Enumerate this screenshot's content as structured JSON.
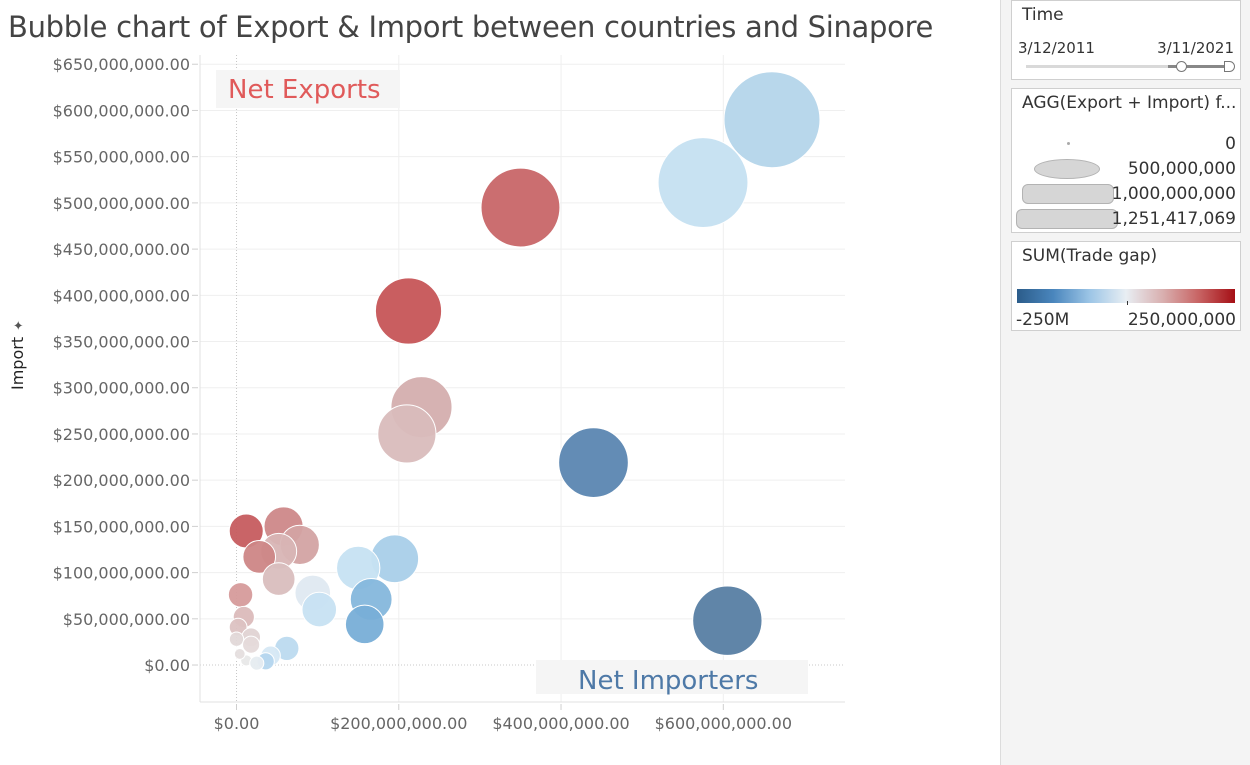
{
  "title": "Bubble chart of Export & Import between  countries and Sinapore",
  "ylabel": "Import",
  "ylabel_pin_icon": "pin-icon",
  "annotations": {
    "net_exports": "Net Exports",
    "net_importers": "Net Importers"
  },
  "chart_data": {
    "type": "scatter",
    "title": "Bubble chart of Export & Import between  countries and Sinapore",
    "xlabel": "",
    "ylabel": "Import",
    "xlim": [
      -45000000,
      750000000
    ],
    "ylim": [
      -40000000,
      660000000
    ],
    "x_ticks": [
      0,
      200000000,
      400000000,
      600000000
    ],
    "x_tick_labels": [
      "$0.00",
      "$200,000,000.00",
      "$400,000,000.00",
      "$600,000,000.00"
    ],
    "y_ticks": [
      0,
      50000000,
      100000000,
      150000000,
      200000000,
      250000000,
      300000000,
      350000000,
      400000000,
      450000000,
      500000000,
      550000000,
      600000000,
      650000000
    ],
    "y_tick_labels": [
      "$0.00",
      "$50,000,000.00",
      "$100,000,000.00",
      "$150,000,000.00",
      "$200,000,000.00",
      "$250,000,000.00",
      "$300,000,000.00",
      "$350,000,000.00",
      "$400,000,000.00",
      "$450,000,000.00",
      "$500,000,000.00",
      "$550,000,000.00",
      "$600,000,000.00",
      "$650,000,000.00"
    ],
    "grid": true,
    "size_by": "AGG(Export + Import)",
    "color_by": "SUM(Trade gap)",
    "points": [
      {
        "x": 660000000,
        "y": 590000000,
        "color": "#b4d5ea"
      },
      {
        "x": 575000000,
        "y": 522000000,
        "color": "#c5e0f1"
      },
      {
        "x": 350000000,
        "y": 495000000,
        "color": "#c86668"
      },
      {
        "x": 212000000,
        "y": 383000000,
        "color": "#c65557"
      },
      {
        "x": 228000000,
        "y": 279000000,
        "color": "#d4aeae"
      },
      {
        "x": 210000000,
        "y": 250000000,
        "color": "#d9bcbc"
      },
      {
        "x": 440000000,
        "y": 219000000,
        "color": "#5b86b1"
      },
      {
        "x": 605000000,
        "y": 48000000,
        "color": "#577ea3"
      },
      {
        "x": 12000000,
        "y": 145000000,
        "color": "#c65c5f"
      },
      {
        "x": 58000000,
        "y": 150000000,
        "color": "#cd8889"
      },
      {
        "x": 78000000,
        "y": 130000000,
        "color": "#d3a3a3"
      },
      {
        "x": 52000000,
        "y": 123000000,
        "color": "#d8b5b5"
      },
      {
        "x": 28000000,
        "y": 117000000,
        "color": "#cd8686"
      },
      {
        "x": 52000000,
        "y": 93000000,
        "color": "#d9bebe"
      },
      {
        "x": 195000000,
        "y": 115000000,
        "color": "#a9cfe9"
      },
      {
        "x": 150000000,
        "y": 105000000,
        "color": "#c6e1f2"
      },
      {
        "x": 166000000,
        "y": 71000000,
        "color": "#85b7dc"
      },
      {
        "x": 158000000,
        "y": 44000000,
        "color": "#78aed7"
      },
      {
        "x": 94000000,
        "y": 78000000,
        "color": "#dfe9f1"
      },
      {
        "x": 102000000,
        "y": 60000000,
        "color": "#c7e1f2"
      },
      {
        "x": 5000000,
        "y": 76000000,
        "color": "#d69b9b"
      },
      {
        "x": 9000000,
        "y": 52000000,
        "color": "#dbbaba"
      },
      {
        "x": 2000000,
        "y": 41000000,
        "color": "#dcc2c2"
      },
      {
        "x": 18000000,
        "y": 30000000,
        "color": "#e0d3d3"
      },
      {
        "x": 0,
        "y": 28000000,
        "color": "#e2d8d8"
      },
      {
        "x": 62000000,
        "y": 18000000,
        "color": "#bcdaef"
      },
      {
        "x": 18000000,
        "y": 22000000,
        "color": "#e5dada"
      },
      {
        "x": 42000000,
        "y": 10000000,
        "color": "#d6e8f4"
      },
      {
        "x": 36000000,
        "y": 4000000,
        "color": "#b5d6ee"
      },
      {
        "x": 12000000,
        "y": 5000000,
        "color": "#e8e8e8"
      },
      {
        "x": 4000000,
        "y": 12000000,
        "color": "#e5dede"
      },
      {
        "x": 25000000,
        "y": 2000000,
        "color": "#e6ecf0"
      }
    ],
    "point_sizes": [
      1251417069,
      1097000000,
      845000000,
      595000000,
      507000000,
      460000000,
      659000000,
      653000000,
      157000000,
      208000000,
      208000000,
      175000000,
      145000000,
      145000000,
      310000000,
      255000000,
      237000000,
      202000000,
      172000000,
      162000000,
      81000000,
      61000000,
      43000000,
      48000000,
      28000000,
      80000000,
      40000000,
      52000000,
      40000000,
      17000000,
      16000000,
      27000000
    ]
  },
  "filters": {
    "time": {
      "title": "Time",
      "start": "3/12/2011",
      "end": "3/11/2021"
    },
    "size_legend": {
      "title": "AGG(Export + Import) f...",
      "items": [
        {
          "label": "0",
          "value": 0
        },
        {
          "label": "500,000,000",
          "value": 500000000
        },
        {
          "label": "1,000,000,000",
          "value": 1000000000
        },
        {
          "label": "1,251,417,069",
          "value": 1251417069
        }
      ]
    },
    "color_legend": {
      "title": "SUM(Trade gap)",
      "min_label": "-250M",
      "max_label": "250,000,000",
      "min_color": "#2b5c8a",
      "max_color": "#a50f15"
    }
  }
}
